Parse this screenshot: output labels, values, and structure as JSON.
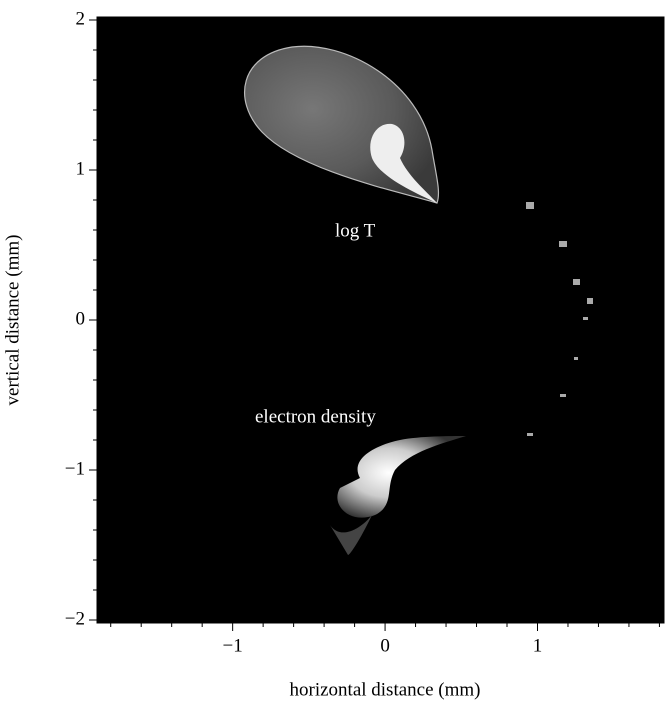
{
  "chart_data": {
    "type": "field",
    "xlabel": "horizontal distance (mm)",
    "ylabel": "vertical distance (mm)",
    "xlim": [
      -1.89,
      1.83
    ],
    "ylim": [
      -2.02,
      2.02
    ],
    "xticks": [
      {
        "value": -1,
        "label": "−1"
      },
      0,
      1
    ],
    "yticks": [
      {
        "value": -2,
        "label": "−2"
      },
      {
        "value": -1,
        "label": "−1"
      },
      0,
      1,
      2
    ],
    "xminorticks": [
      -1.8,
      -1.6,
      -1.4,
      -1.2,
      -0.8,
      -0.6,
      -0.4,
      -0.2,
      0.2,
      0.4,
      0.6,
      0.8,
      1.2,
      1.4,
      1.6,
      1.8
    ],
    "yminorticks": [
      -1.8,
      -1.6,
      -1.4,
      -1.2,
      -0.8,
      -0.6,
      -0.4,
      -0.2,
      0.2,
      0.4,
      0.6,
      0.8,
      1.2,
      1.4,
      1.6,
      1.8
    ],
    "annotations": [
      "log T",
      "electron density"
    ]
  }
}
